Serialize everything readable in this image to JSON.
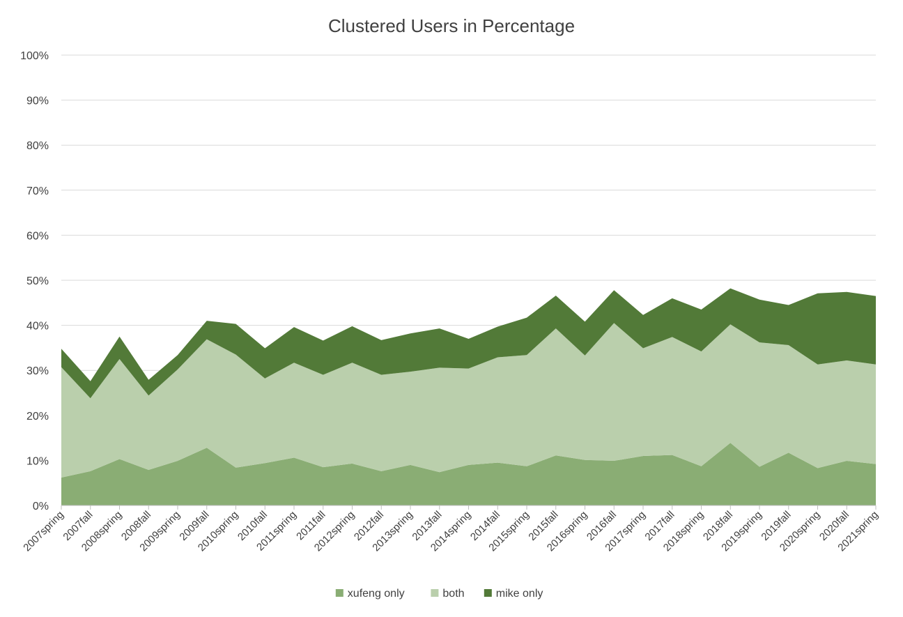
{
  "chart_data": {
    "type": "area",
    "stacked": true,
    "title": "Clustered Users in Percentage",
    "xlabel": "",
    "ylabel": "",
    "ylim": [
      0,
      100
    ],
    "yticks": [
      "0%",
      "10%",
      "20%",
      "30%",
      "40%",
      "50%",
      "60%",
      "70%",
      "80%",
      "90%",
      "100%"
    ],
    "grid": true,
    "legend_position": "bottom",
    "categories": [
      "2007spring",
      "2007fall",
      "2008spring",
      "2008fall",
      "2009spring",
      "2009fall",
      "2010spring",
      "2010fall",
      "2011spring",
      "2011fall",
      "2012spring",
      "2012fall",
      "2013spring",
      "2013fall",
      "2014spring",
      "2014fall",
      "2015spring",
      "2015fall",
      "2016spring",
      "2016fall",
      "2017spring",
      "2017fall",
      "2018spring",
      "2018fall",
      "2019spring",
      "2019fall",
      "2020spring",
      "2020fall",
      "2021spring"
    ],
    "series": [
      {
        "name": "xufeng only",
        "color": "#8aad74",
        "values": [
          6.2,
          7.6,
          10.3,
          7.9,
          9.9,
          12.8,
          8.4,
          9.4,
          10.6,
          8.5,
          9.3,
          7.6,
          9.0,
          7.4,
          9.0,
          9.5,
          8.7,
          11.1,
          10.1,
          9.9,
          11.0,
          11.2,
          8.7,
          13.9,
          8.6,
          11.7,
          8.3,
          9.9,
          9.2
        ]
      },
      {
        "name": "both",
        "color": "#bacfac",
        "values": [
          24.5,
          16.2,
          22.2,
          16.5,
          20.3,
          24.1,
          25.1,
          18.8,
          21.1,
          20.5,
          22.4,
          21.4,
          20.7,
          23.2,
          21.4,
          23.4,
          24.7,
          28.2,
          23.2,
          30.6,
          23.9,
          26.2,
          25.5,
          26.3,
          27.6,
          23.9,
          23.0,
          22.3,
          22.1
        ]
      },
      {
        "name": "mike only",
        "color": "#527a38",
        "values": [
          4.1,
          3.8,
          5.0,
          3.5,
          3.2,
          4.1,
          6.8,
          6.7,
          7.9,
          7.6,
          8.1,
          7.7,
          8.5,
          8.7,
          6.6,
          6.8,
          8.3,
          7.3,
          7.5,
          7.3,
          7.4,
          8.6,
          9.3,
          8.0,
          9.5,
          8.9,
          15.8,
          15.2,
          15.2
        ]
      }
    ]
  }
}
